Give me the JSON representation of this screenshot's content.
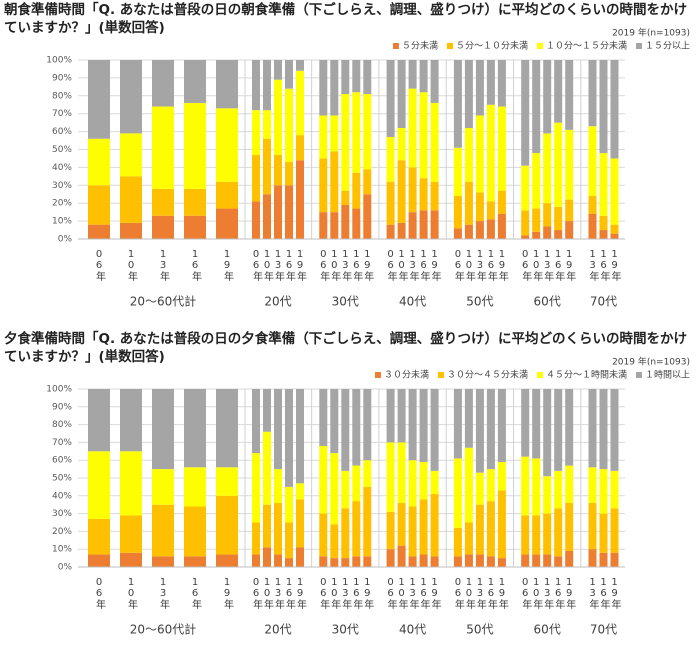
{
  "chart_data": [
    {
      "type": "stacked-bar",
      "title": "朝食準備時間",
      "question": "「Q. あなたは普段の日の朝食準備（下ごしらえ、調理、盛りつけ）に平均どのくらいの時間をかけていますか？」(単数回答)",
      "note": "2019 年(n=1093)",
      "groups": [
        {
          "name": "20～60代計",
          "categories": [
            "06年",
            "10年",
            "13年",
            "16年",
            "19年"
          ]
        },
        {
          "name": "20代",
          "categories": [
            "06年",
            "10年",
            "13年",
            "16年",
            "19年"
          ]
        },
        {
          "name": "30代",
          "categories": [
            "06年",
            "10年",
            "13年",
            "16年",
            "19年"
          ]
        },
        {
          "name": "40代",
          "categories": [
            "06年",
            "10年",
            "13年",
            "16年",
            "19年"
          ]
        },
        {
          "name": "50代",
          "categories": [
            "06年",
            "10年",
            "13年",
            "16年",
            "19年"
          ]
        },
        {
          "name": "60代",
          "categories": [
            "06年",
            "10年",
            "13年",
            "16年",
            "19年"
          ]
        },
        {
          "name": "70代",
          "categories": [
            "13年",
            "16年",
            "19年"
          ]
        }
      ],
      "series": [
        {
          "name": "５分未満",
          "color": "#ed7d31",
          "values": [
            8,
            9,
            13,
            13,
            17,
            21,
            25,
            30,
            30,
            44,
            15,
            15,
            19,
            17,
            25,
            8,
            9,
            15,
            16,
            16,
            6,
            8,
            10,
            11,
            14,
            2,
            4,
            7,
            5,
            10,
            14,
            5,
            3
          ]
        },
        {
          "name": "５分～１０分未満",
          "color": "#ffc000",
          "values": [
            22,
            26,
            15,
            15,
            15,
            26,
            31,
            17,
            13,
            14,
            30,
            34,
            8,
            20,
            14,
            24,
            35,
            25,
            18,
            16,
            18,
            24,
            16,
            10,
            13,
            14,
            13,
            13,
            13,
            12,
            10,
            8,
            5
          ]
        },
        {
          "name": "１０分～１５分未満",
          "color": "#ffff00",
          "values": [
            26,
            24,
            46,
            48,
            41,
            25,
            16,
            42,
            41,
            36,
            24,
            20,
            54,
            45,
            42,
            25,
            18,
            44,
            48,
            44,
            27,
            30,
            43,
            54,
            47,
            25,
            31,
            39,
            47,
            39,
            39,
            35,
            37
          ]
        },
        {
          "name": "１５分以上",
          "color": "#a5a5a5",
          "values": [
            44,
            41,
            26,
            24,
            27,
            28,
            28,
            11,
            16,
            6,
            31,
            31,
            19,
            18,
            19,
            43,
            38,
            16,
            18,
            24,
            49,
            38,
            31,
            25,
            26,
            59,
            52,
            41,
            35,
            39,
            37,
            52,
            55
          ]
        }
      ],
      "ylim": [
        0,
        100
      ],
      "yticks": [
        {
          "value": 0,
          "label": "0%"
        },
        {
          "value": 10,
          "label": "10%"
        },
        {
          "value": 20,
          "label": "20%"
        },
        {
          "value": 30,
          "label": "30%"
        },
        {
          "value": 40,
          "label": "40%"
        },
        {
          "value": 50,
          "label": "50%"
        },
        {
          "value": 60,
          "label": "60%"
        },
        {
          "value": 70,
          "label": "70%"
        },
        {
          "value": 80,
          "label": "80%"
        },
        {
          "value": 90,
          "label": "90%"
        },
        {
          "value": 100,
          "label": "100%"
        }
      ],
      "grid": true
    },
    {
      "type": "stacked-bar",
      "title": "夕食準備時間",
      "question": "「Q. あなたは普段の日の夕食準備（下ごしらえ、調理、盛りつけ）に平均どのくらいの時間をかけていますか？」(単数回答)",
      "note": "2019 年(n=1093)",
      "groups": [
        {
          "name": "20～60代計",
          "categories": [
            "06年",
            "10年",
            "13年",
            "16年",
            "19年"
          ]
        },
        {
          "name": "20代",
          "categories": [
            "06年",
            "10年",
            "13年",
            "16年",
            "19年"
          ]
        },
        {
          "name": "30代",
          "categories": [
            "06年",
            "10年",
            "13年",
            "16年",
            "19年"
          ]
        },
        {
          "name": "40代",
          "categories": [
            "06年",
            "10年",
            "13年",
            "16年",
            "19年"
          ]
        },
        {
          "name": "50代",
          "categories": [
            "06年",
            "10年",
            "13年",
            "16年",
            "19年"
          ]
        },
        {
          "name": "60代",
          "categories": [
            "06年",
            "10年",
            "13年",
            "16年",
            "19年"
          ]
        },
        {
          "name": "70代",
          "categories": [
            "13年",
            "16年",
            "19年"
          ]
        }
      ],
      "series": [
        {
          "name": "３０分未満",
          "color": "#ed7d31",
          "values": [
            7,
            8,
            6,
            6,
            7,
            7,
            11,
            7,
            5,
            11,
            6,
            5,
            5,
            6,
            6,
            10,
            12,
            6,
            7,
            6,
            6,
            7,
            7,
            6,
            5,
            7,
            7,
            7,
            6,
            9,
            10,
            8,
            8
          ]
        },
        {
          "name": "３０分～４５分未満",
          "color": "#ffc000",
          "values": [
            20,
            21,
            29,
            28,
            33,
            18,
            24,
            29,
            20,
            27,
            24,
            19,
            28,
            31,
            39,
            21,
            24,
            28,
            31,
            35,
            16,
            18,
            28,
            31,
            38,
            22,
            22,
            23,
            27,
            27,
            26,
            22,
            25
          ]
        },
        {
          "name": "４５分～１時間未満",
          "color": "#ffff00",
          "values": [
            38,
            36,
            20,
            22,
            16,
            39,
            41,
            19,
            20,
            9,
            38,
            40,
            21,
            20,
            15,
            39,
            34,
            26,
            21,
            13,
            39,
            42,
            18,
            18,
            16,
            33,
            32,
            21,
            21,
            21,
            20,
            25,
            21
          ]
        },
        {
          "name": "１時間以上",
          "color": "#a5a5a5",
          "values": [
            35,
            35,
            45,
            44,
            44,
            36,
            24,
            45,
            55,
            53,
            32,
            36,
            46,
            43,
            40,
            30,
            30,
            40,
            41,
            46,
            39,
            33,
            47,
            45,
            41,
            38,
            39,
            49,
            46,
            43,
            44,
            45,
            46
          ]
        }
      ],
      "ylim": [
        0,
        100
      ],
      "yticks": [
        {
          "value": 0,
          "label": "0%"
        },
        {
          "value": 10,
          "label": "10%"
        },
        {
          "value": 20,
          "label": "20%"
        },
        {
          "value": 30,
          "label": "30%"
        },
        {
          "value": 40,
          "label": "40%"
        },
        {
          "value": 50,
          "label": "50%"
        },
        {
          "value": 60,
          "label": "60%"
        },
        {
          "value": 70,
          "label": "70%"
        },
        {
          "value": 80,
          "label": "80%"
        },
        {
          "value": 90,
          "label": "90%"
        },
        {
          "value": 100,
          "label": "100%"
        }
      ],
      "grid": true
    }
  ]
}
